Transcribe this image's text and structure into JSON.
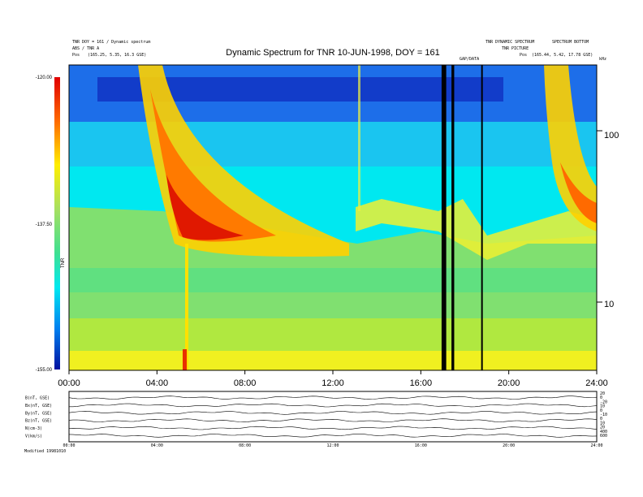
{
  "header": {
    "left_line1": "TNR DOY = 161 / Dynamic spectrum",
    "left_line2": "ABS / TNR A",
    "left_pos_label": "Pos",
    "left_pos_value": "(165.25, 5.35, 16.3 GSE)",
    "right_line1": "TNR DYNAMIC SPECTRUM",
    "right_line2": "SPECTRUM BOTTOM",
    "right_line3": "TNR PICTURE",
    "right_pos_label": "Pos",
    "right_pos_value": "(165.44, 5.42, 17.78 GSE)",
    "center_tag": "GAP/DATA",
    "khz_label": "kHz"
  },
  "chart_data": {
    "type": "heatmap",
    "title": "Dynamic Spectrum for TNR 10-JUN-1998, DOY = 161",
    "x_range": [
      0,
      24
    ],
    "x_unit": "hours UT",
    "x_ticks": [
      "00:00",
      "04:00",
      "08:00",
      "12:00",
      "16:00",
      "20:00",
      "24:00"
    ],
    "y_scale": "log",
    "y_range_khz": [
      4.1,
      245
    ],
    "y_ticks": [
      "10",
      "100"
    ],
    "colorbar_ticks": [
      "-120.00",
      "-137.50",
      "-155.00"
    ],
    "colorbar_range": [
      -155,
      -120
    ],
    "colorbar_label": "TNR",
    "data_gaps_hours": [
      17.0,
      17.1,
      17.45,
      17.5,
      18.8
    ]
  },
  "bottom_panels": {
    "left_labels": [
      "B(nT, GSE)",
      "Bx(nT, GSE)",
      "By(nT, GSE)",
      "Bz(nT, GSE)",
      "N(cm-3)",
      "V(km/s)"
    ],
    "right_ticks": [
      "20",
      "0",
      "-20",
      "10",
      "0",
      "-10",
      "0",
      "10",
      "20",
      "400",
      "600"
    ],
    "time_ticks": [
      "00:00",
      "04:00",
      "08:00",
      "12:00",
      "16:00",
      "20:00",
      "24:00"
    ],
    "footer": "Modified 19981010"
  }
}
